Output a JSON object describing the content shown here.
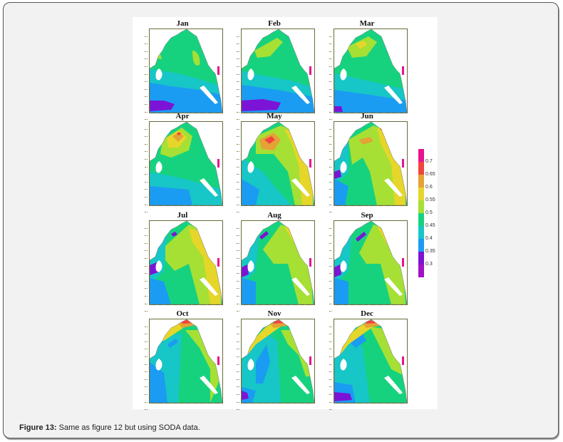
{
  "figure": {
    "label": "Figure 13:",
    "caption_text": " Same as figure 12 but using SODA data.",
    "panels": [
      {
        "title": "Jan"
      },
      {
        "title": "Feb"
      },
      {
        "title": "Mar"
      },
      {
        "title": "Apr"
      },
      {
        "title": "May"
      },
      {
        "title": "Jun"
      },
      {
        "title": "Jul"
      },
      {
        "title": "Aug"
      },
      {
        "title": "Sep"
      },
      {
        "title": "Oct"
      },
      {
        "title": "Nov"
      },
      {
        "title": "Dec"
      }
    ],
    "colorbar": {
      "labels": [
        "0.7",
        "0.65",
        "0.6",
        "0.55",
        "0.5",
        "0.45",
        "0.4",
        "0.35",
        "0.3"
      ],
      "colors": [
        "#e8138f",
        "#f2443e",
        "#e5a235",
        "#e6d629",
        "#a6e034",
        "#16d27f",
        "#17c6c6",
        "#1a9cf2",
        "#7b14d6",
        "#a013c6"
      ]
    }
  },
  "chart_data": {
    "type": "heatmap",
    "title": "Figure 13: Same as figure 12 but using SODA data.",
    "panels": [
      "Jan",
      "Feb",
      "Mar",
      "Apr",
      "May",
      "Jun",
      "Jul",
      "Aug",
      "Sep",
      "Oct",
      "Nov",
      "Dec"
    ],
    "layout": {
      "rows": 4,
      "cols": 3
    },
    "colorbar": {
      "ticks": [
        0.3,
        0.35,
        0.4,
        0.45,
        0.5,
        0.55,
        0.6,
        0.65,
        0.7
      ],
      "range": [
        0.28,
        0.72
      ],
      "position": "right"
    },
    "description": "Monthly contour maps over a regional sea basin; values range ~0.3 (purple, southwest in Jan/Feb/Nov/Dec) to ~0.7 (red/magenta, northern coast in Jun–Nov and central maxima in Apr/May)."
  }
}
